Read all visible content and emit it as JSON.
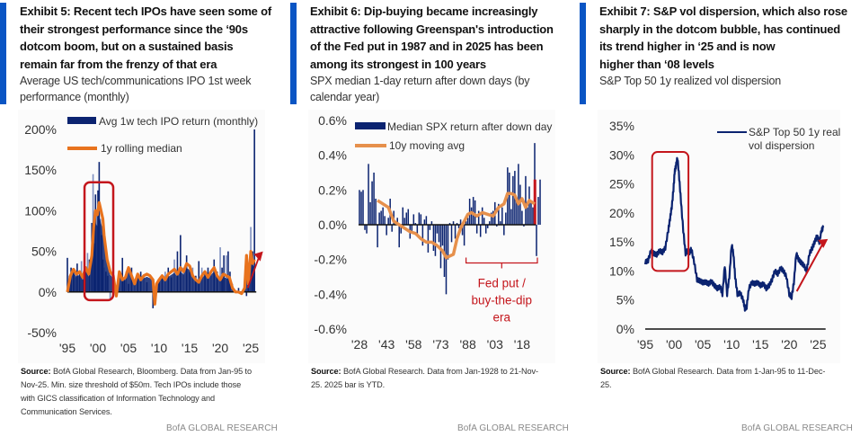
{
  "brand_label": "BofA GLOBAL RESEARCH",
  "colors": {
    "navy": "#0b2370",
    "navy_light": "#7e8fbf",
    "orange": "#e8731e",
    "orange_light": "#e6904c",
    "red": "#c4161c",
    "accent_bar": "#0a55c4",
    "axis": "#111111"
  },
  "exhibits": [
    {
      "title_lines": [
        "Exhibit 5: Recent tech IPOs have seen some of",
        "their strongest performance since the ‘90s",
        "dotcom boom, but on a sustained basis",
        "remain far from the frenzy of that era"
      ],
      "subtitle_lines": [
        "Average US tech/communications IPO 1st week",
        "performance (monthly)"
      ],
      "source_label": "Source:",
      "source_lines": [
        " BofA Global Research, Bloomberg. Data from Jan-95 to",
        "Nov-25. Min. size threshold of $50m. Tech IPOs include those",
        "with GICS classification of Information Technology and",
        "Communication Services."
      ]
    },
    {
      "title_lines": [
        "Exhibit 6: Dip-buying became increasingly",
        "attractive following Greenspan's introduction",
        "of the Fed put in 1987 and in 2025 has been",
        "among its strongest in 100 years"
      ],
      "subtitle_lines": [
        "SPX median 1-day return after down days (by",
        "calendar year)"
      ],
      "source_label": "Source:",
      "source_lines": [
        " BofA Global Research. Data from Jan-1928 to 21-Nov-",
        "25. 2025 bar is YTD."
      ]
    },
    {
      "title_lines": [
        "Exhibit 7: S&P vol dispersion, which also rose",
        "sharply in the dotcom bubble, has continued",
        "its trend higher in ‘25 and is now",
        "higher than ‘08 levels"
      ],
      "subtitle_lines": [
        "S&P Top 50 1y realized vol dispersion"
      ],
      "source_label": "Source:",
      "source_lines": [
        " BofA Global Research. Data from 1-Jan-95 to 11-Dec-",
        "25."
      ]
    }
  ],
  "chart_data": [
    {
      "type": "bar",
      "title": "Average US tech/communications IPO 1st week performance (monthly)",
      "xlabel": "",
      "ylabel": "",
      "ylim": [
        -50,
        200
      ],
      "yticks": [
        -50,
        0,
        50,
        100,
        150,
        200
      ],
      "ytick_labels": [
        "-50%",
        "0%",
        "50%",
        "100%",
        "150%",
        "200%"
      ],
      "xlim": [
        1995,
        2026.9
      ],
      "xticks": [
        1995,
        2000,
        2005,
        2010,
        2015,
        2020,
        2025
      ],
      "xtick_labels": [
        "'95",
        "'00",
        "'05",
        "'10",
        "'15",
        "'20",
        "'25"
      ],
      "legend": [
        "Avg 1w tech IPO return (monthly)",
        "1y rolling median"
      ],
      "legend_position": "top",
      "series": [
        {
          "name": "Avg 1w tech IPO return (monthly)",
          "kind": "bar",
          "x": [
            1995.0,
            1995.3,
            1995.6,
            1996.0,
            1996.3,
            1996.6,
            1997.0,
            1997.3,
            1997.6,
            1998.0,
            1998.3,
            1998.6,
            1999.0,
            1999.2,
            1999.4,
            1999.6,
            1999.8,
            2000.0,
            2000.2,
            2000.4,
            2000.6,
            2000.8,
            2001.0,
            2001.3,
            2001.6,
            2002.0,
            2002.5,
            2003.0,
            2003.5,
            2004.0,
            2004.3,
            2004.6,
            2005.0,
            2005.5,
            2006.0,
            2006.5,
            2007.0,
            2007.5,
            2008.0,
            2009.0,
            2009.5,
            2010.0,
            2010.5,
            2011.0,
            2011.5,
            2012.0,
            2012.5,
            2013.0,
            2013.5,
            2014.0,
            2014.5,
            2015.0,
            2015.5,
            2016.0,
            2016.5,
            2017.0,
            2017.5,
            2018.0,
            2018.5,
            2019.0,
            2019.5,
            2020.0,
            2020.3,
            2020.6,
            2021.0,
            2021.3,
            2021.6,
            2022.0,
            2023.0,
            2023.5,
            2024.0,
            2024.3,
            2024.6,
            2025.0,
            2025.3,
            2025.6
          ],
          "values": [
            42,
            20,
            30,
            25,
            18,
            35,
            22,
            38,
            15,
            30,
            48,
            40,
            85,
            145,
            60,
            120,
            95,
            125,
            160,
            90,
            70,
            40,
            30,
            25,
            20,
            -10,
            15,
            5,
            22,
            42,
            18,
            25,
            10,
            30,
            15,
            22,
            25,
            18,
            12,
            -20,
            8,
            15,
            20,
            25,
            30,
            18,
            40,
            50,
            70,
            30,
            45,
            25,
            30,
            20,
            38,
            30,
            22,
            30,
            20,
            40,
            25,
            55,
            30,
            45,
            45,
            50,
            25,
            10,
            5,
            0,
            10,
            -5,
            20,
            80,
            50,
            200
          ]
        },
        {
          "name": "1y rolling median",
          "kind": "line",
          "x": [
            1995.0,
            1995.5,
            1996.0,
            1996.5,
            1997.0,
            1997.5,
            1998.0,
            1998.5,
            1999.0,
            1999.3,
            1999.6,
            1999.9,
            2000.2,
            2000.5,
            2000.8,
            2001.0,
            2001.5,
            2002.0,
            2002.5,
            2003.0,
            2003.5,
            2004.0,
            2004.5,
            2005.0,
            2005.5,
            2006.0,
            2006.5,
            2007.0,
            2007.5,
            2008.0,
            2008.5,
            2009.0,
            2009.3,
            2009.6,
            2010.0,
            2010.5,
            2011.0,
            2011.5,
            2012.0,
            2012.5,
            2013.0,
            2013.5,
            2014.0,
            2014.5,
            2015.0,
            2015.5,
            2016.0,
            2016.5,
            2017.0,
            2017.5,
            2018.0,
            2018.5,
            2019.0,
            2019.5,
            2020.0,
            2020.5,
            2021.0,
            2021.5,
            2022.0,
            2022.5,
            2023.0,
            2023.5,
            2024.0,
            2024.3,
            2024.6,
            2025.0,
            2025.3,
            2025.6
          ],
          "values": [
            0,
            20,
            28,
            22,
            25,
            18,
            30,
            22,
            45,
            80,
            100,
            95,
            110,
            100,
            90,
            70,
            40,
            25,
            20,
            -5,
            25,
            15,
            18,
            30,
            20,
            10,
            22,
            15,
            20,
            22,
            20,
            15,
            -15,
            10,
            15,
            20,
            15,
            22,
            25,
            28,
            22,
            30,
            25,
            35,
            32,
            20,
            15,
            12,
            20,
            25,
            18,
            25,
            30,
            20,
            15,
            22,
            20,
            18,
            5,
            0,
            0,
            -2,
            5,
            45,
            10,
            50,
            35,
            40
          ]
        }
      ],
      "annotations": [
        {
          "type": "highlight-box",
          "x_range": [
            1997.8,
            2002.5
          ],
          "y_range": [
            -10,
            135
          ],
          "color": "red"
        },
        {
          "type": "arrow",
          "from": [
            2024.5,
            5
          ],
          "to": [
            2027,
            50
          ],
          "color": "red"
        }
      ],
      "grid": false
    },
    {
      "type": "bar",
      "title": "SPX median 1-day return after down days (by calendar year)",
      "xlabel": "",
      "ylabel": "",
      "ylim": [
        -0.6,
        0.6
      ],
      "yticks": [
        -0.6,
        -0.4,
        -0.2,
        0.0,
        0.2,
        0.4,
        0.6
      ],
      "ytick_labels": [
        "-0.6%",
        "-0.4%",
        "-0.2%",
        "0.0%",
        "0.2%",
        "0.4%",
        "0.6%"
      ],
      "xlim": [
        1928,
        2025
      ],
      "xticks": [
        1928,
        1943,
        1958,
        1973,
        1988,
        2003,
        2018
      ],
      "xtick_labels": [
        "'28",
        "'43",
        "'58",
        "'73",
        "'88",
        "'03",
        "'18"
      ],
      "legend": [
        "Median SPX return after down day",
        "10y moving avg"
      ],
      "legend_position": "top",
      "series": [
        {
          "name": "Median SPX return after down day",
          "kind": "bar",
          "x_start": 1928,
          "values": [
            0.2,
            0.19,
            0.2,
            -0.03,
            -0.05,
            0.35,
            0.13,
            0.25,
            0.3,
            0.15,
            -0.13,
            0.07,
            0.08,
            0.1,
            0.05,
            -0.06,
            0.04,
            0.15,
            -0.04,
            0.08,
            0.01,
            0.04,
            -0.13,
            -0.05,
            0.1,
            0.04,
            0.07,
            0.09,
            -0.08,
            -0.04,
            0.06,
            0.01,
            -0.05,
            0.07,
            0.06,
            -0.12,
            0.03,
            0.05,
            -0.16,
            -0.03,
            0.02,
            -0.15,
            -0.18,
            -0.05,
            -0.1,
            -0.25,
            -0.12,
            -0.3,
            -0.4,
            -0.2,
            0.01,
            -0.1,
            0.02,
            -0.08,
            0.01,
            -0.02,
            0.03,
            -0.06,
            -0.12,
            0.02,
            0.04,
            0.15,
            0.1,
            0.16,
            0.14,
            -0.05,
            0.08,
            -0.07,
            0.1,
            0.04,
            -0.05,
            -0.02,
            0.02,
            0.07,
            0.08,
            0.13,
            -0.01,
            0.12,
            0.02,
            0.1,
            -0.06,
            0.07,
            0.33,
            0.3,
            0.09,
            0.28,
            0.31,
            0.15,
            0.35,
            0.23,
            0.08,
            -0.01,
            0.28,
            0.1,
            0.22,
            0.13,
            0.1,
            0.47,
            -0.18,
            0.16,
            0.26
          ]
        },
        {
          "name": "10y moving avg",
          "kind": "line",
          "x": [
            1938,
            1941,
            1944,
            1947,
            1950,
            1953,
            1956,
            1959,
            1962,
            1965,
            1968,
            1971,
            1974,
            1976,
            1978,
            1980,
            1982,
            1984,
            1986,
            1988,
            1990,
            1993,
            1996,
            1999,
            2002,
            2005,
            2008,
            2010,
            2012,
            2014,
            2016,
            2018,
            2020,
            2022,
            2025
          ],
          "values": [
            0.14,
            0.12,
            0.1,
            0.02,
            0.0,
            -0.02,
            -0.04,
            -0.05,
            -0.08,
            -0.1,
            -0.1,
            -0.12,
            -0.15,
            -0.19,
            -0.18,
            -0.17,
            -0.08,
            -0.02,
            0.02,
            0.06,
            0.07,
            0.05,
            0.07,
            0.06,
            0.05,
            0.1,
            0.12,
            0.18,
            0.18,
            0.17,
            0.12,
            0.15,
            0.1,
            0.14,
            0.12
          ]
        }
      ],
      "highlight_bar": {
        "x": 2025,
        "value": 0.26,
        "color": "red",
        "note": "2025 bar is YTD"
      },
      "annotations": [
        {
          "type": "bracket",
          "x_range": [
            1987,
            2025
          ],
          "text": "Fed put / buy-the-dip era",
          "text_lines": [
            "Fed put /",
            "buy-the-dip",
            "era"
          ],
          "color": "red"
        }
      ],
      "grid": false
    },
    {
      "type": "line",
      "title": "S&P Top 50 1y realized vol dispersion",
      "xlabel": "",
      "ylabel": "",
      "ylim": [
        0,
        35
      ],
      "yticks": [
        0,
        5,
        10,
        15,
        20,
        25,
        30,
        35
      ],
      "ytick_labels": [
        "0%",
        "5%",
        "10%",
        "15%",
        "20%",
        "25%",
        "30%",
        "35%"
      ],
      "xlim": [
        1995,
        2026.5
      ],
      "xticks": [
        1995,
        2000,
        2005,
        2010,
        2015,
        2020,
        2025
      ],
      "xtick_labels": [
        "'95",
        "'00",
        "'05",
        "'10",
        "'15",
        "'20",
        "'25"
      ],
      "legend": [
        "S&P Top 50 1y realized vol dispersion"
      ],
      "legend_position": "top-right",
      "series": [
        {
          "name": "S&P Top 50 1y realized vol dispersion",
          "x": [
            1995.0,
            1995.5,
            1996.0,
            1996.5,
            1997.0,
            1997.5,
            1998.0,
            1998.5,
            1999.0,
            1999.3,
            1999.6,
            1999.9,
            2000.1,
            2000.3,
            2000.6,
            2000.9,
            2001.2,
            2001.6,
            2002.0,
            2002.3,
            2002.7,
            2003.0,
            2003.5,
            2004.0,
            2004.5,
            2005.0,
            2005.5,
            2006.0,
            2006.5,
            2007.0,
            2007.5,
            2008.0,
            2008.4,
            2008.8,
            2009.2,
            2009.6,
            2010.0,
            2010.3,
            2010.6,
            2011.0,
            2011.5,
            2012.0,
            2012.3,
            2012.6,
            2013.0,
            2013.5,
            2014.0,
            2014.5,
            2015.0,
            2015.5,
            2016.0,
            2016.5,
            2017.0,
            2017.5,
            2018.0,
            2018.5,
            2019.0,
            2019.5,
            2020.0,
            2020.4,
            2020.8,
            2021.2,
            2021.6,
            2022.0,
            2022.5,
            2023.0,
            2023.5,
            2024.0,
            2024.4,
            2024.8,
            2025.2,
            2025.6,
            2025.9
          ],
          "values": [
            11.5,
            11.8,
            13.5,
            13.0,
            12.8,
            13.5,
            13.2,
            14.0,
            17,
            19,
            21,
            24,
            27,
            28,
            29.5,
            26,
            22,
            17,
            13,
            13.5,
            13.2,
            13.8,
            11.5,
            8.5,
            8.3,
            8.0,
            8.1,
            7.8,
            8.2,
            7.5,
            7.0,
            7.3,
            6.0,
            11.0,
            6.0,
            9.0,
            14.5,
            13.0,
            9.0,
            6.0,
            6.2,
            5.0,
            3.5,
            3.8,
            7.0,
            8.0,
            7.8,
            8.0,
            7.5,
            7.8,
            7.0,
            7.5,
            8.5,
            10,
            9.5,
            10.5,
            10.0,
            9.0,
            6.0,
            5.5,
            8.0,
            13.0,
            12.0,
            11.5,
            11.0,
            10.0,
            13.0,
            14.0,
            15.0,
            16.0,
            15.0,
            17.0,
            17.5
          ]
        }
      ],
      "annotations": [
        {
          "type": "highlight-box",
          "x_range": [
            1996.2,
            2002.5
          ],
          "y_range": [
            10,
            30.5
          ],
          "color": "red"
        },
        {
          "type": "arrow",
          "from": [
            2021.3,
            6.5
          ],
          "to": [
            2026.7,
            15.5
          ],
          "color": "red"
        }
      ],
      "grid": false
    }
  ]
}
